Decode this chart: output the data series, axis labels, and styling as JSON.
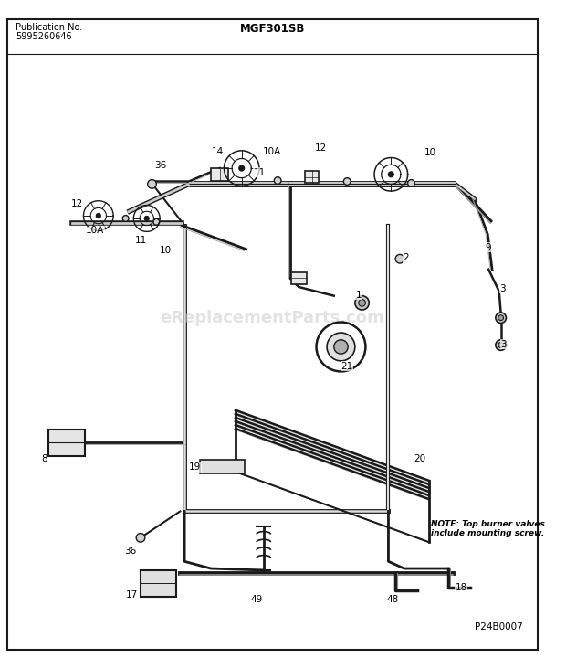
{
  "title_left_line1": "Publication No.",
  "title_left_line2": "5995260646",
  "title_center": "MGF301SB",
  "note_text": "NOTE: Top burner valves\ninclude mounting screw.",
  "part_id": "P24B0007",
  "watermark": "eReplacementParts.com",
  "bg_color": "#ffffff",
  "border_color": "#000000",
  "dc": "#1a1a1a",
  "header_line_top": "#555555",
  "figsize": [
    6.2,
    7.32
  ],
  "dpi": 100
}
